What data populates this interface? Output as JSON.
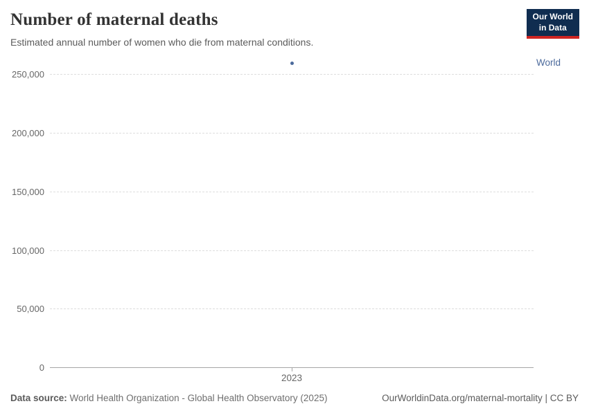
{
  "header": {
    "title": "Number of maternal deaths",
    "subtitle": "Estimated annual number of women who die from maternal conditions.",
    "logo": {
      "line1": "Our World",
      "line2": "in Data"
    }
  },
  "chart_data": {
    "type": "scatter",
    "title": "Number of maternal deaths",
    "x": [
      2023
    ],
    "series": [
      {
        "name": "World",
        "color": "#4c6a9c",
        "values": [
          260000
        ]
      }
    ],
    "xticks": [
      "2023"
    ],
    "yticks": [
      0,
      50000,
      100000,
      150000,
      200000,
      250000
    ],
    "ylim": [
      0,
      265000
    ],
    "grid": "horizontal-dashed",
    "gridline_color": "#dddddd",
    "axis_color": "#a5a5a5",
    "tick_label_color": "#666666",
    "legend_position": "right-of-point"
  },
  "footer": {
    "source_label": "Data source:",
    "source_text": " World Health Organization - Global Health Observatory (2025)",
    "license": "OurWorldinData.org/maternal-mortality | CC BY"
  },
  "colors": {
    "title": "#333333",
    "subtitle": "#5b5b5b",
    "logo_bg": "#102d50",
    "logo_accent": "#cf2522",
    "series_blue": "#4c6a9c"
  }
}
